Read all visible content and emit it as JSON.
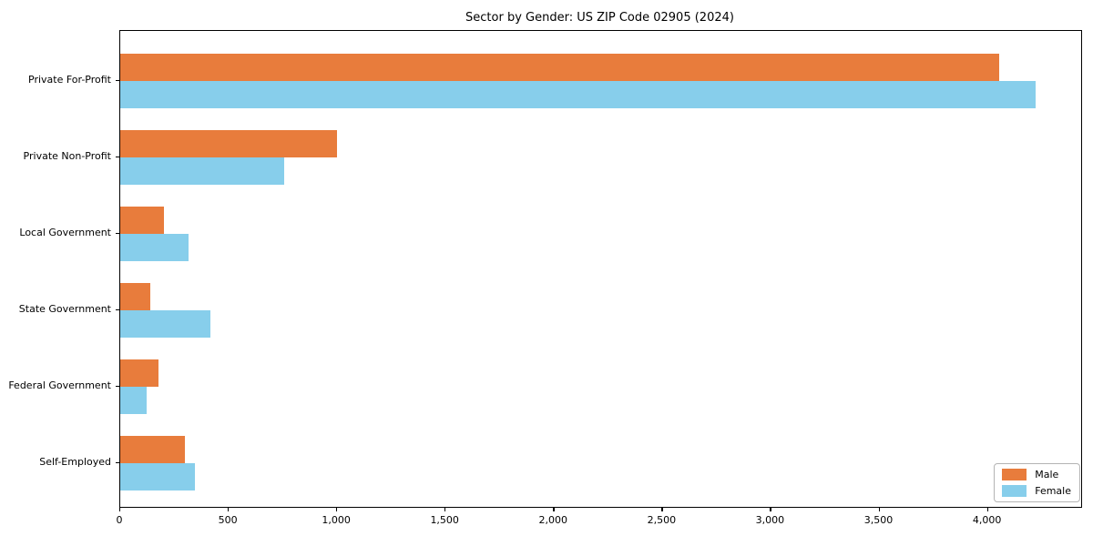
{
  "chart_data": {
    "type": "bar",
    "orientation": "horizontal",
    "title": "Sector by Gender: US ZIP Code 02905 (2024)",
    "categories": [
      "Private For-Profit",
      "Private Non-Profit",
      "Local Government",
      "State Government",
      "Federal Government",
      "Self-Employed"
    ],
    "series": [
      {
        "name": "Male",
        "color": "#E87C3C",
        "values": [
          4050,
          1000,
          200,
          140,
          175,
          300
        ]
      },
      {
        "name": "Female",
        "color": "#87CEEB",
        "values": [
          4220,
          755,
          315,
          415,
          120,
          345
        ]
      }
    ],
    "xticks": [
      0,
      500,
      1000,
      1500,
      2000,
      2500,
      3000,
      3500,
      4000
    ],
    "xtick_labels": [
      "0",
      "500",
      "1,000",
      "1,500",
      "2,000",
      "2,500",
      "3,000",
      "3,500",
      "4,000"
    ],
    "xlim": [
      0,
      4430
    ],
    "xlabel": "",
    "ylabel": "",
    "grid": false,
    "legend_position": "lower right"
  }
}
